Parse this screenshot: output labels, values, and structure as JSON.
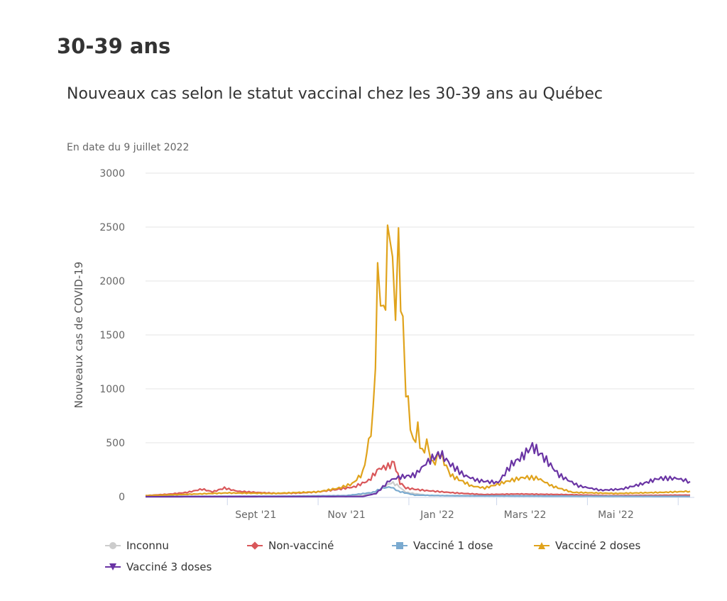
{
  "heading": "30-39 ans",
  "chart_data": {
    "type": "line",
    "title": "Nouveaux cas selon le statut vaccinal chez les 30-39 ans au Québec",
    "subtitle": "En date du 9 juillet 2022",
    "ylabel": "Nouveaux cas de COVID-19",
    "xlabel": "",
    "ylim": [
      0,
      3000
    ],
    "yticks": [
      "0",
      "500",
      "1000",
      "1500",
      "2000",
      "2500",
      "3000"
    ],
    "xlim": [
      "2021-07-08",
      "2022-07-09"
    ],
    "xticks": [
      {
        "date": "2021-09-01",
        "label": "Sept '21"
      },
      {
        "date": "2021-11-01",
        "label": "Nov '21"
      },
      {
        "date": "2022-01-01",
        "label": "Jan '22"
      },
      {
        "date": "2022-03-01",
        "label": "Mars '22"
      },
      {
        "date": "2022-05-01",
        "label": "Mai '22"
      },
      {
        "date": "2022-07-01",
        "label": ""
      }
    ],
    "grid": true,
    "legend_position": "bottom",
    "series": [
      {
        "name": "Inconnu",
        "color": "#cccccc",
        "marker": "circle",
        "points": [
          [
            "2021-07-08",
            3
          ],
          [
            "2021-10-01",
            5
          ],
          [
            "2021-12-01",
            10
          ],
          [
            "2021-12-12",
            60
          ],
          [
            "2021-12-20",
            130
          ],
          [
            "2021-12-24",
            110
          ],
          [
            "2021-12-30",
            40
          ],
          [
            "2022-01-15",
            10
          ],
          [
            "2022-07-09",
            3
          ]
        ]
      },
      {
        "name": "Non-vacciné",
        "color": "#d9575a",
        "marker": "diamond",
        "points": [
          [
            "2021-07-08",
            10
          ],
          [
            "2021-07-25",
            25
          ],
          [
            "2021-08-05",
            40
          ],
          [
            "2021-08-15",
            70
          ],
          [
            "2021-08-22",
            45
          ],
          [
            "2021-08-30",
            80
          ],
          [
            "2021-09-08",
            50
          ],
          [
            "2021-09-20",
            40
          ],
          [
            "2021-10-05",
            30
          ],
          [
            "2021-10-20",
            35
          ],
          [
            "2021-11-01",
            45
          ],
          [
            "2021-11-15",
            70
          ],
          [
            "2021-11-25",
            90
          ],
          [
            "2021-12-05",
            150
          ],
          [
            "2021-12-12",
            260
          ],
          [
            "2021-12-18",
            280
          ],
          [
            "2021-12-22",
            320
          ],
          [
            "2021-12-26",
            130
          ],
          [
            "2021-12-30",
            80
          ],
          [
            "2022-01-10",
            60
          ],
          [
            "2022-02-01",
            35
          ],
          [
            "2022-02-20",
            20
          ],
          [
            "2022-03-15",
            25
          ],
          [
            "2022-04-15",
            20
          ],
          [
            "2022-05-15",
            10
          ],
          [
            "2022-07-09",
            15
          ]
        ]
      },
      {
        "name": "Vacciné 1 dose",
        "color": "#7aaad0",
        "marker": "square",
        "points": [
          [
            "2021-07-08",
            2
          ],
          [
            "2021-10-01",
            4
          ],
          [
            "2021-11-20",
            10
          ],
          [
            "2021-12-08",
            40
          ],
          [
            "2021-12-14",
            80
          ],
          [
            "2021-12-20",
            90
          ],
          [
            "2021-12-25",
            50
          ],
          [
            "2022-01-05",
            15
          ],
          [
            "2022-02-01",
            8
          ],
          [
            "2022-07-09",
            3
          ]
        ]
      },
      {
        "name": "Vacciné 2 doses",
        "color": "#e0a31c",
        "marker": "triangle",
        "points": [
          [
            "2021-07-08",
            10
          ],
          [
            "2021-08-01",
            20
          ],
          [
            "2021-09-01",
            35
          ],
          [
            "2021-10-01",
            30
          ],
          [
            "2021-11-01",
            45
          ],
          [
            "2021-11-15",
            80
          ],
          [
            "2021-11-24",
            120
          ],
          [
            "2021-12-01",
            220
          ],
          [
            "2021-12-05",
            500
          ],
          [
            "2021-12-08",
            750
          ],
          [
            "2021-12-11",
            1950
          ],
          [
            "2021-12-13",
            2000
          ],
          [
            "2021-12-15",
            1650
          ],
          [
            "2021-12-19",
            2570
          ],
          [
            "2021-12-21",
            2000
          ],
          [
            "2021-12-23",
            1850
          ],
          [
            "2021-12-25",
            2320
          ],
          [
            "2021-12-28",
            1500
          ],
          [
            "2021-12-30",
            1000
          ],
          [
            "2022-01-02",
            700
          ],
          [
            "2022-01-04",
            500
          ],
          [
            "2022-01-07",
            620
          ],
          [
            "2022-01-10",
            400
          ],
          [
            "2022-01-13",
            500
          ],
          [
            "2022-01-17",
            300
          ],
          [
            "2022-01-22",
            400
          ],
          [
            "2022-01-29",
            200
          ],
          [
            "2022-02-12",
            100
          ],
          [
            "2022-02-21",
            80
          ],
          [
            "2022-03-10",
            150
          ],
          [
            "2022-03-20",
            180
          ],
          [
            "2022-03-29",
            170
          ],
          [
            "2022-04-07",
            100
          ],
          [
            "2022-04-21",
            40
          ],
          [
            "2022-05-20",
            30
          ],
          [
            "2022-06-20",
            40
          ],
          [
            "2022-07-09",
            50
          ]
        ]
      },
      {
        "name": "Vacciné 3 doses",
        "color": "#6a34a4",
        "marker": "triangle-down",
        "points": [
          [
            "2021-07-08",
            0
          ],
          [
            "2021-12-01",
            2
          ],
          [
            "2021-12-10",
            30
          ],
          [
            "2021-12-19",
            150
          ],
          [
            "2021-12-25",
            180
          ],
          [
            "2022-01-05",
            200
          ],
          [
            "2022-01-14",
            330
          ],
          [
            "2022-01-22",
            400
          ],
          [
            "2022-01-29",
            300
          ],
          [
            "2022-02-07",
            200
          ],
          [
            "2022-02-16",
            150
          ],
          [
            "2022-03-02",
            130
          ],
          [
            "2022-03-11",
            300
          ],
          [
            "2022-03-18",
            370
          ],
          [
            "2022-03-25",
            470
          ],
          [
            "2022-04-02",
            360
          ],
          [
            "2022-04-12",
            200
          ],
          [
            "2022-04-25",
            100
          ],
          [
            "2022-05-10",
            60
          ],
          [
            "2022-05-24",
            70
          ],
          [
            "2022-06-07",
            120
          ],
          [
            "2022-06-18",
            170
          ],
          [
            "2022-06-30",
            170
          ],
          [
            "2022-07-09",
            140
          ]
        ]
      }
    ]
  }
}
